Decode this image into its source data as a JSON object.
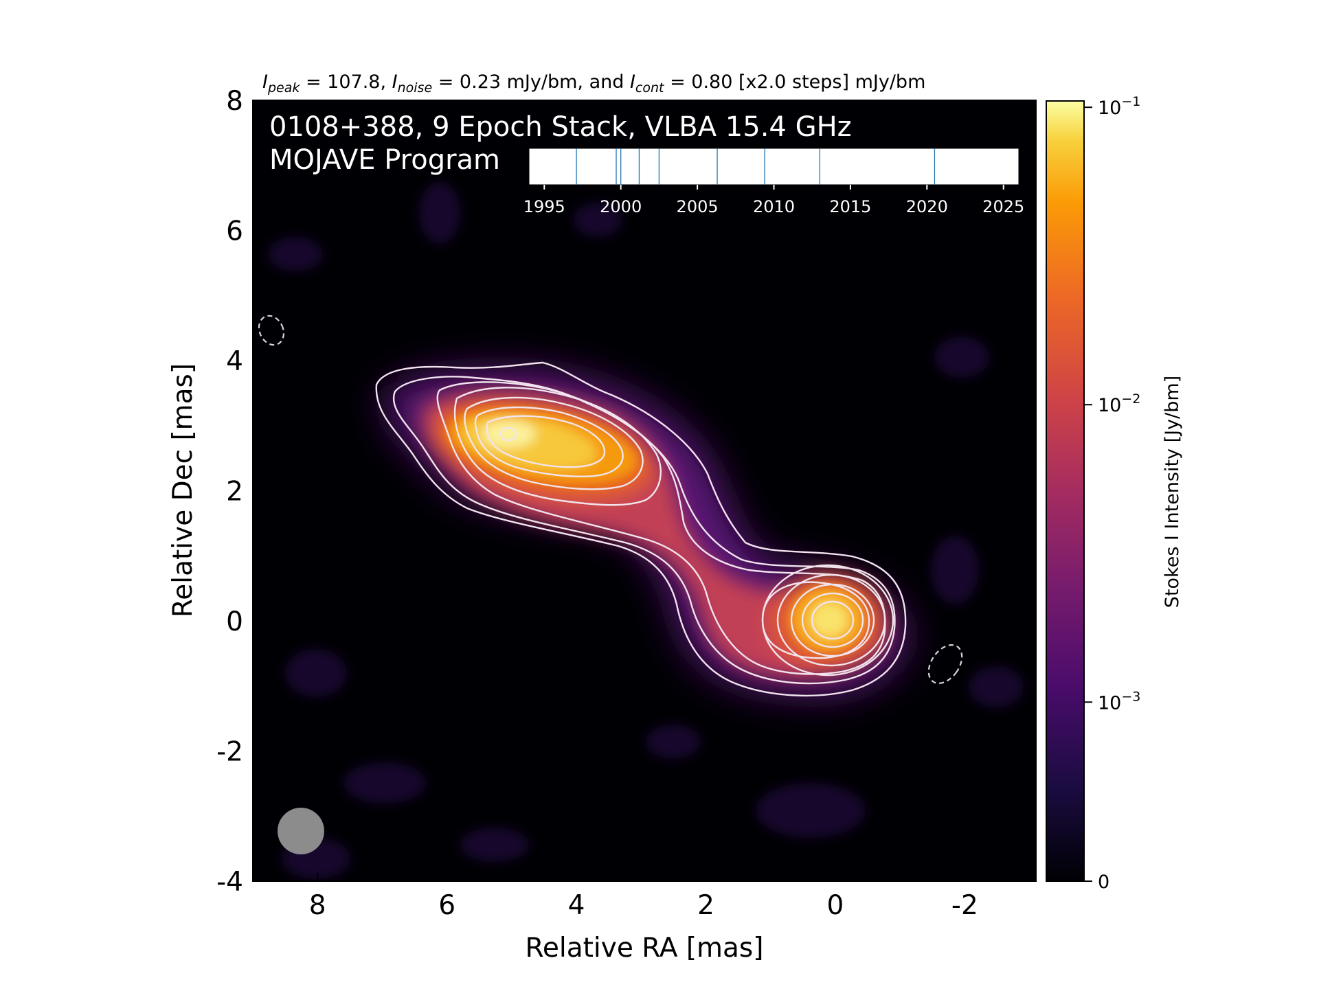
{
  "header": {
    "peak_label": "I",
    "peak_sub": "peak",
    "peak_value": " = 107.8, ",
    "noise_label": "I",
    "noise_sub": "noise",
    "noise_value": " = 0.23 mJy/bm, and ",
    "cont_label": "I",
    "cont_sub": "cont",
    "cont_value": " = 0.80 [x2.0 steps] mJy/bm"
  },
  "title_line1": "0108+388, 9 Epoch Stack, VLBA 15.4 GHz",
  "title_line2": "MOJAVE Program",
  "colors": {
    "background": "#000004",
    "contour": "#f2e4ee",
    "beam": "#8c8c8c",
    "epoch_tick": "#1f77b4"
  },
  "chart_data": {
    "type": "heatmap",
    "colormap": "inferno",
    "xlabel": "Relative RA [mas]",
    "ylabel": "Relative Dec [mas]",
    "xlim": [
      9,
      -3.1
    ],
    "ylim": [
      -4,
      8
    ],
    "x_ticks": [
      8,
      6,
      4,
      2,
      0,
      -2
    ],
    "x_tick_labels": [
      "8",
      "6",
      "4",
      "2",
      "0",
      "-2"
    ],
    "y_ticks": [
      8,
      6,
      4,
      2,
      0,
      -2,
      -4
    ],
    "y_tick_labels": [
      "8",
      "6",
      "4",
      "2",
      "0",
      "-2",
      "-4"
    ],
    "components": [
      {
        "name": "core",
        "ra": 0.0,
        "dec": 0.0,
        "peak_jy": 0.1078
      },
      {
        "name": "hotspot",
        "ra": 5.1,
        "dec": 2.9,
        "peak_jy": 0.09
      }
    ],
    "contour_levels_mjy": [
      0.8,
      1.6,
      3.2,
      6.4,
      12.8,
      25.6,
      51.2,
      102.4
    ],
    "colorbar": {
      "label": "Stokes I Intensity [Jy/bm]",
      "scale": "log",
      "tick_values": [
        0,
        0.001,
        0.01,
        0.1
      ],
      "tick_labels": [
        {
          "base": "0",
          "exp": ""
        },
        {
          "base": "10",
          "exp": "−3"
        },
        {
          "base": "10",
          "exp": "−2"
        },
        {
          "base": "10",
          "exp": "−1"
        }
      ]
    },
    "epoch_timeline": {
      "xlim": [
        1994,
        2026
      ],
      "tick_labels": [
        "1995",
        "2000",
        "2005",
        "2010",
        "2015",
        "2020",
        "2025"
      ],
      "tick_values": [
        1995,
        2000,
        2005,
        2010,
        2015,
        2020,
        2025
      ],
      "epochs": [
        1997.1,
        1999.7,
        2000.0,
        2001.2,
        2002.5,
        2006.3,
        2009.4,
        2013.0,
        2020.5
      ]
    },
    "annotations": [
      {
        "type": "dashed-ellipse",
        "ra": 8.75,
        "dec": 4.5
      },
      {
        "type": "dashed-ellipse",
        "ra": -1.7,
        "dec": -0.7
      },
      {
        "type": "beam",
        "ra": 8.3,
        "dec": -3.3
      }
    ]
  }
}
